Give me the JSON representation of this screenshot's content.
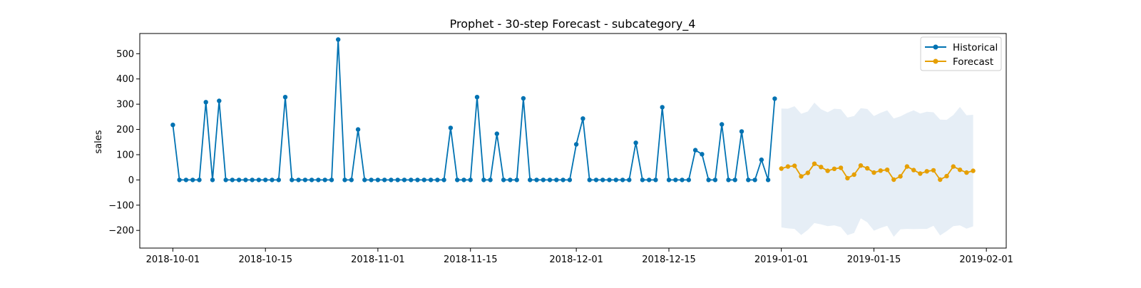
{
  "chart_data": {
    "type": "line",
    "title": "Prophet - 30-step Forecast - subcategory_4",
    "xlabel": "",
    "ylabel": "sales",
    "xlim": [
      "2018-09-26",
      "2019-02-04"
    ],
    "ylim": [
      -270,
      580
    ],
    "yticks": [
      -200,
      -100,
      0,
      100,
      200,
      300,
      400,
      500
    ],
    "xticks": [
      "2018-10-01",
      "2018-10-15",
      "2018-11-01",
      "2018-11-15",
      "2018-12-01",
      "2018-12-15",
      "2019-01-01",
      "2019-01-15",
      "2019-02-01"
    ],
    "legend_position": "top-right",
    "grid": false,
    "historical_start": "2018-10-01",
    "series": [
      {
        "name": "Historical",
        "color": "#0072b2",
        "marker": "circle",
        "values": [
          218,
          0,
          0,
          0,
          0,
          308,
          0,
          313,
          0,
          0,
          0,
          0,
          0,
          0,
          0,
          0,
          0,
          328,
          0,
          0,
          0,
          0,
          0,
          0,
          0,
          556,
          0,
          0,
          200,
          0,
          0,
          0,
          0,
          0,
          0,
          0,
          0,
          0,
          0,
          0,
          0,
          0,
          206,
          0,
          0,
          0,
          328,
          0,
          0,
          183,
          0,
          0,
          0,
          323,
          0,
          0,
          0,
          0,
          0,
          0,
          0,
          141,
          243,
          0,
          0,
          0,
          0,
          0,
          0,
          0,
          147,
          0,
          0,
          0,
          288,
          0,
          0,
          0,
          0,
          118,
          102,
          0,
          0,
          220,
          0,
          0,
          192,
          0,
          0,
          80,
          0,
          322
        ]
      },
      {
        "name": "Forecast",
        "color": "#e69f00",
        "marker": "circle",
        "start": "2019-01-01",
        "values": [
          45,
          53,
          56,
          14,
          28,
          64,
          51,
          36,
          44,
          48,
          7,
          21,
          57,
          46,
          29,
          37,
          40,
          1,
          14,
          53,
          39,
          25,
          34,
          38,
          1,
          15,
          53,
          40,
          29,
          36
        ],
        "interval_upper": [
          283,
          282,
          292,
          262,
          271,
          306,
          280,
          268,
          282,
          280,
          247,
          253,
          284,
          281,
          253,
          266,
          276,
          243,
          252,
          265,
          276,
          263,
          270,
          268,
          239,
          238,
          257,
          289,
          256,
          258
        ],
        "interval_lower": [
          -188,
          -192,
          -194,
          -218,
          -198,
          -171,
          -176,
          -183,
          -180,
          -187,
          -219,
          -210,
          -152,
          -168,
          -201,
          -190,
          -182,
          -225,
          -196,
          -194,
          -195,
          -194,
          -194,
          -182,
          -220,
          -203,
          -183,
          -180,
          -193,
          -184
        ],
        "interval_color": "#e6eef6"
      }
    ]
  }
}
